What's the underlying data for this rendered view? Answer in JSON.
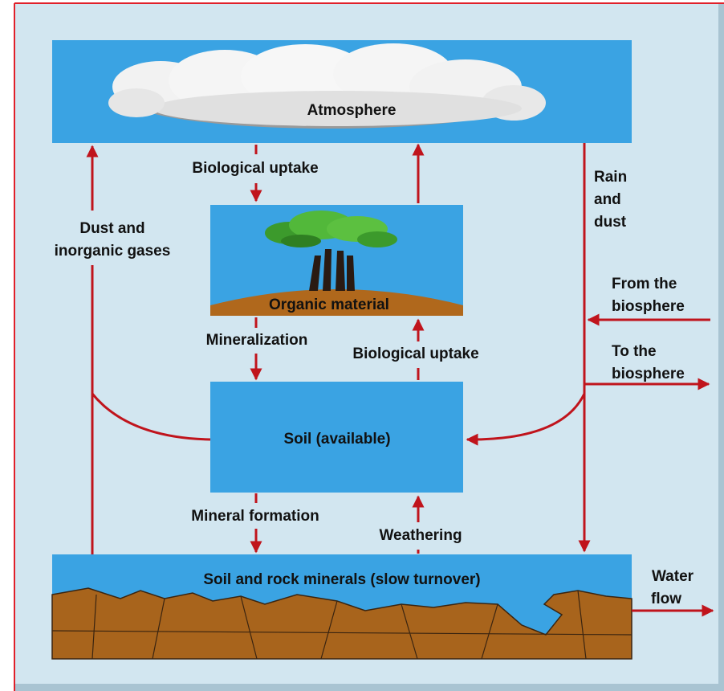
{
  "nodes": [
    {
      "label": "Atmosphere"
    },
    {
      "label": "Organic material"
    },
    {
      "label": "Soil  (available)"
    },
    {
      "label": "Soil and rock minerals (slow turnover)"
    }
  ],
  "edges": [
    {
      "label": [
        "Biological uptake"
      ]
    },
    {
      "label": [
        "Dust and",
        "inorganic gases"
      ]
    },
    {
      "label": [
        "Rain",
        "and",
        "dust"
      ]
    },
    {
      "label": [
        "From the",
        "biosphere"
      ]
    },
    {
      "label": [
        "To the",
        "biosphere"
      ]
    },
    {
      "label": [
        "Mineralization"
      ]
    },
    {
      "label": [
        "Biological uptake"
      ]
    },
    {
      "label": [
        "Mineral formation"
      ]
    },
    {
      "label": [
        "Weathering"
      ]
    },
    {
      "label": [
        "Water",
        "flow"
      ]
    }
  ]
}
